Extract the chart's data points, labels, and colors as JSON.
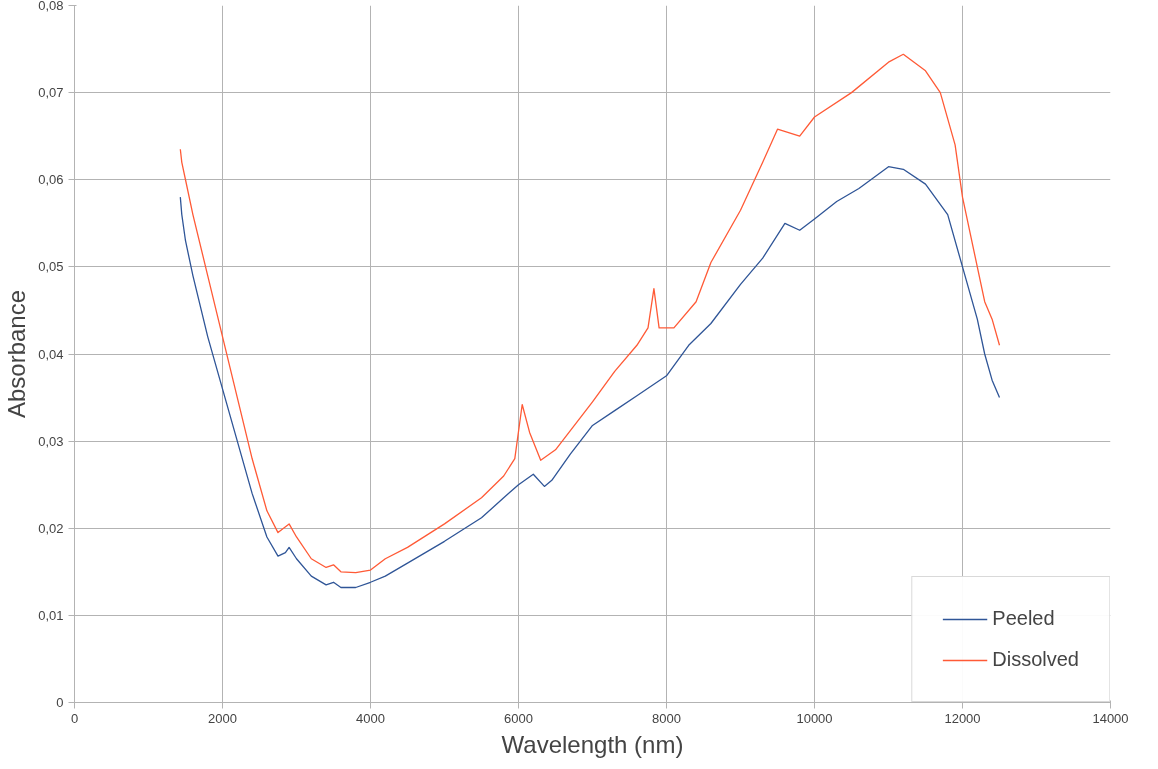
{
  "chart_data": {
    "type": "line",
    "xlabel": "Wavelength (nm)",
    "ylabel": "Absorbance",
    "xlim": [
      0,
      14000
    ],
    "xticks": [
      0,
      2000,
      4000,
      6000,
      8000,
      10000,
      12000,
      14000
    ],
    "ylim": [
      0,
      0.08
    ],
    "yticks": [
      {
        "value": 0,
        "label": "0"
      },
      {
        "value": 0.01,
        "label": "0,01"
      },
      {
        "value": 0.02,
        "label": "0,02"
      },
      {
        "value": 0.03,
        "label": "0,03"
      },
      {
        "value": 0.04,
        "label": "0,04"
      },
      {
        "value": 0.05,
        "label": "0,05"
      },
      {
        "value": 0.06,
        "label": "0,06"
      },
      {
        "value": 0.07,
        "label": "0,07"
      },
      {
        "value": 0.08,
        "label": "0,08"
      }
    ],
    "grid": true,
    "legend": "bottom right",
    "marker": "none",
    "line_style": "solid",
    "series": [
      {
        "name": "Peeled",
        "color": "#2f5597",
        "x": [
          1430,
          1450,
          1500,
          1600,
          1800,
          2000,
          2200,
          2400,
          2600,
          2750,
          2850,
          2900,
          3000,
          3200,
          3400,
          3500,
          3600,
          3800,
          4000,
          4200,
          4500,
          5000,
          5500,
          5800,
          6000,
          6200,
          6350,
          6450,
          6700,
          7000,
          7300,
          7600,
          8000,
          8300,
          8600,
          9000,
          9300,
          9600,
          9800,
          10000,
          10300,
          10600,
          11000,
          11200,
          11500,
          11800,
          12000,
          12200,
          12300,
          12400,
          12500
        ],
        "values": [
          0.058,
          0.056,
          0.053,
          0.049,
          0.042,
          0.036,
          0.03,
          0.024,
          0.019,
          0.0168,
          0.0172,
          0.0178,
          0.0165,
          0.0145,
          0.0135,
          0.0138,
          0.0132,
          0.0132,
          0.0138,
          0.0145,
          0.016,
          0.0185,
          0.0212,
          0.0235,
          0.025,
          0.0262,
          0.0248,
          0.0255,
          0.0285,
          0.0318,
          0.0335,
          0.0352,
          0.0375,
          0.041,
          0.0435,
          0.048,
          0.051,
          0.055,
          0.0542,
          0.0555,
          0.0575,
          0.059,
          0.0615,
          0.0612,
          0.0595,
          0.056,
          0.05,
          0.044,
          0.04,
          0.037,
          0.035
        ]
      },
      {
        "name": "Dissolved",
        "color": "#ff5a36",
        "x": [
          1430,
          1450,
          1500,
          1600,
          1800,
          2000,
          2200,
          2400,
          2600,
          2750,
          2900,
          3000,
          3200,
          3400,
          3500,
          3600,
          3800,
          4000,
          4200,
          4500,
          5000,
          5500,
          5800,
          5950,
          6050,
          6150,
          6300,
          6500,
          7000,
          7300,
          7600,
          7750,
          7830,
          7900,
          8100,
          8400,
          8600,
          9000,
          9300,
          9500,
          9800,
          10000,
          10500,
          11000,
          11200,
          11500,
          11700,
          11900,
          12000,
          12200,
          12300,
          12400,
          12500
        ],
        "values": [
          0.0635,
          0.062,
          0.06,
          0.056,
          0.049,
          0.042,
          0.035,
          0.028,
          0.022,
          0.0195,
          0.0205,
          0.019,
          0.0165,
          0.0155,
          0.0158,
          0.015,
          0.0149,
          0.0152,
          0.0165,
          0.0178,
          0.0205,
          0.0235,
          0.026,
          0.028,
          0.0342,
          0.031,
          0.0278,
          0.029,
          0.0345,
          0.038,
          0.041,
          0.043,
          0.0475,
          0.043,
          0.043,
          0.046,
          0.0505,
          0.0565,
          0.062,
          0.0658,
          0.065,
          0.0672,
          0.07,
          0.0735,
          0.0744,
          0.0725,
          0.07,
          0.064,
          0.058,
          0.05,
          0.046,
          0.044,
          0.041
        ]
      }
    ]
  }
}
